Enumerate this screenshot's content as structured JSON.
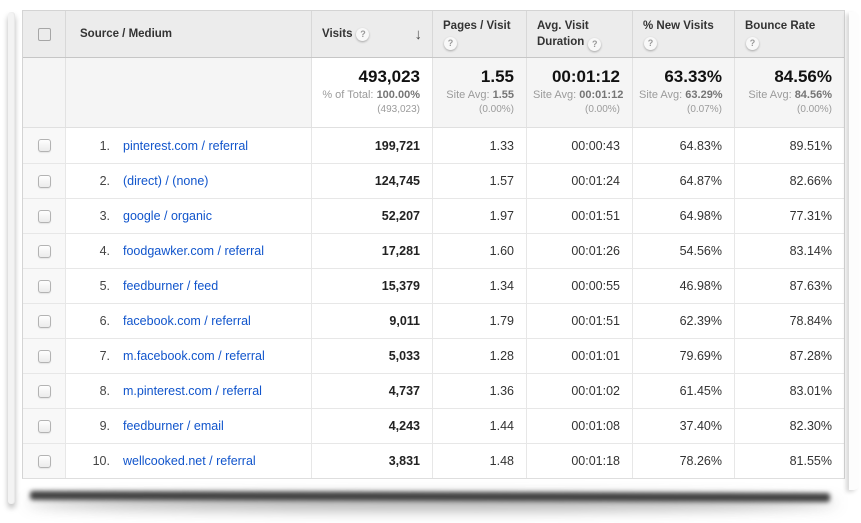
{
  "icons": {
    "help": "?",
    "sort_desc": "↓"
  },
  "table": {
    "columns": [
      {
        "label": "Source / Medium"
      },
      {
        "label": "Visits",
        "sorted": "desc"
      },
      {
        "label": "Pages / Visit"
      },
      {
        "label": "Avg. Visit Duration"
      },
      {
        "label": "% New Visits"
      },
      {
        "label": "Bounce Rate"
      }
    ],
    "summary": {
      "visits": {
        "value": "493,023",
        "sub_label": "% of Total:",
        "sub_value": "100.00%",
        "delta": "(493,023)"
      },
      "pages": {
        "value": "1.55",
        "sub_label": "Site Avg:",
        "sub_value": "1.55",
        "delta": "(0.00%)"
      },
      "duration": {
        "value": "00:01:12",
        "sub_label": "Site Avg:",
        "sub_value": "00:01:12",
        "delta": "(0.00%)"
      },
      "new_visits": {
        "value": "63.33%",
        "sub_label": "Site Avg:",
        "sub_value": "63.29%",
        "delta": "(0.07%)"
      },
      "bounce": {
        "value": "84.56%",
        "sub_label": "Site Avg:",
        "sub_value": "84.56%",
        "delta": "(0.00%)"
      }
    },
    "rows": [
      {
        "index": "1.",
        "source": "pinterest.com / referral",
        "visits": "199,721",
        "pages": "1.33",
        "duration": "00:00:43",
        "new_visits": "64.83%",
        "bounce": "89.51%"
      },
      {
        "index": "2.",
        "source": "(direct) / (none)",
        "visits": "124,745",
        "pages": "1.57",
        "duration": "00:01:24",
        "new_visits": "64.87%",
        "bounce": "82.66%"
      },
      {
        "index": "3.",
        "source": "google / organic",
        "visits": "52,207",
        "pages": "1.97",
        "duration": "00:01:51",
        "new_visits": "64.98%",
        "bounce": "77.31%"
      },
      {
        "index": "4.",
        "source": "foodgawker.com / referral",
        "visits": "17,281",
        "pages": "1.60",
        "duration": "00:01:26",
        "new_visits": "54.56%",
        "bounce": "83.14%"
      },
      {
        "index": "5.",
        "source": "feedburner / feed",
        "visits": "15,379",
        "pages": "1.34",
        "duration": "00:00:55",
        "new_visits": "46.98%",
        "bounce": "87.63%"
      },
      {
        "index": "6.",
        "source": "facebook.com / referral",
        "visits": "9,011",
        "pages": "1.79",
        "duration": "00:01:51",
        "new_visits": "62.39%",
        "bounce": "78.84%"
      },
      {
        "index": "7.",
        "source": "m.facebook.com / referral",
        "visits": "5,033",
        "pages": "1.28",
        "duration": "00:01:01",
        "new_visits": "79.69%",
        "bounce": "87.28%"
      },
      {
        "index": "8.",
        "source": "m.pinterest.com / referral",
        "visits": "4,737",
        "pages": "1.36",
        "duration": "00:01:02",
        "new_visits": "61.45%",
        "bounce": "83.01%"
      },
      {
        "index": "9.",
        "source": "feedburner / email",
        "visits": "4,243",
        "pages": "1.44",
        "duration": "00:01:08",
        "new_visits": "37.40%",
        "bounce": "82.30%"
      },
      {
        "index": "10.",
        "source": "wellcooked.net / referral",
        "visits": "3,831",
        "pages": "1.48",
        "duration": "00:01:18",
        "new_visits": "78.26%",
        "bounce": "81.55%"
      }
    ]
  }
}
